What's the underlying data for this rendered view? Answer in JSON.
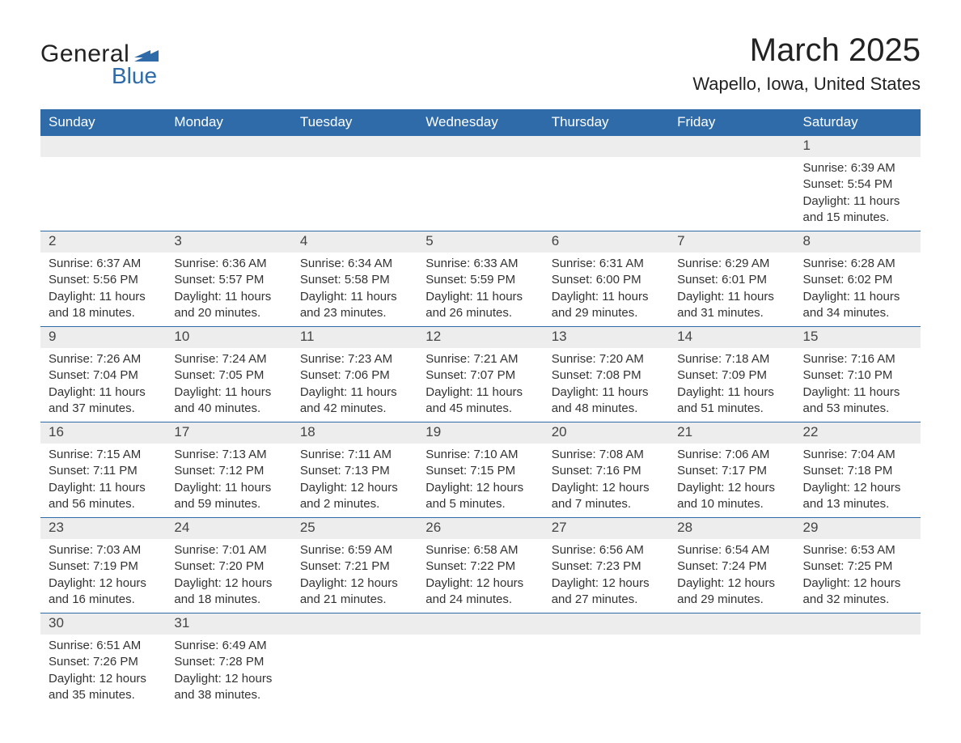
{
  "logo": {
    "text_general": "General",
    "text_blue": "Blue",
    "swoosh_color": "#2f6ba8",
    "text_color_general": "#222222",
    "text_color_blue": "#2f6ba8"
  },
  "title": {
    "month": "March 2025",
    "location": "Wapello, Iowa, United States",
    "month_fontsize": 40,
    "location_fontsize": 22,
    "color": "#222222"
  },
  "calendar": {
    "type": "table",
    "header_bg": "#2f6ba8",
    "header_text_color": "#ffffff",
    "row_border_color": "#2f6ba8",
    "daynum_bg": "#ededed",
    "daynum_color": "#444444",
    "body_text_color": "#333333",
    "header_fontsize": 17,
    "daynum_fontsize": 17,
    "body_fontsize": 15,
    "columns": [
      "Sunday",
      "Monday",
      "Tuesday",
      "Wednesday",
      "Thursday",
      "Friday",
      "Saturday"
    ],
    "weeks": [
      [
        {
          "day": "",
          "sunrise": "",
          "sunset": "",
          "daylight": ""
        },
        {
          "day": "",
          "sunrise": "",
          "sunset": "",
          "daylight": ""
        },
        {
          "day": "",
          "sunrise": "",
          "sunset": "",
          "daylight": ""
        },
        {
          "day": "",
          "sunrise": "",
          "sunset": "",
          "daylight": ""
        },
        {
          "day": "",
          "sunrise": "",
          "sunset": "",
          "daylight": ""
        },
        {
          "day": "",
          "sunrise": "",
          "sunset": "",
          "daylight": ""
        },
        {
          "day": "1",
          "sunrise": "Sunrise: 6:39 AM",
          "sunset": "Sunset: 5:54 PM",
          "daylight": "Daylight: 11 hours and 15 minutes."
        }
      ],
      [
        {
          "day": "2",
          "sunrise": "Sunrise: 6:37 AM",
          "sunset": "Sunset: 5:56 PM",
          "daylight": "Daylight: 11 hours and 18 minutes."
        },
        {
          "day": "3",
          "sunrise": "Sunrise: 6:36 AM",
          "sunset": "Sunset: 5:57 PM",
          "daylight": "Daylight: 11 hours and 20 minutes."
        },
        {
          "day": "4",
          "sunrise": "Sunrise: 6:34 AM",
          "sunset": "Sunset: 5:58 PM",
          "daylight": "Daylight: 11 hours and 23 minutes."
        },
        {
          "day": "5",
          "sunrise": "Sunrise: 6:33 AM",
          "sunset": "Sunset: 5:59 PM",
          "daylight": "Daylight: 11 hours and 26 minutes."
        },
        {
          "day": "6",
          "sunrise": "Sunrise: 6:31 AM",
          "sunset": "Sunset: 6:00 PM",
          "daylight": "Daylight: 11 hours and 29 minutes."
        },
        {
          "day": "7",
          "sunrise": "Sunrise: 6:29 AM",
          "sunset": "Sunset: 6:01 PM",
          "daylight": "Daylight: 11 hours and 31 minutes."
        },
        {
          "day": "8",
          "sunrise": "Sunrise: 6:28 AM",
          "sunset": "Sunset: 6:02 PM",
          "daylight": "Daylight: 11 hours and 34 minutes."
        }
      ],
      [
        {
          "day": "9",
          "sunrise": "Sunrise: 7:26 AM",
          "sunset": "Sunset: 7:04 PM",
          "daylight": "Daylight: 11 hours and 37 minutes."
        },
        {
          "day": "10",
          "sunrise": "Sunrise: 7:24 AM",
          "sunset": "Sunset: 7:05 PM",
          "daylight": "Daylight: 11 hours and 40 minutes."
        },
        {
          "day": "11",
          "sunrise": "Sunrise: 7:23 AM",
          "sunset": "Sunset: 7:06 PM",
          "daylight": "Daylight: 11 hours and 42 minutes."
        },
        {
          "day": "12",
          "sunrise": "Sunrise: 7:21 AM",
          "sunset": "Sunset: 7:07 PM",
          "daylight": "Daylight: 11 hours and 45 minutes."
        },
        {
          "day": "13",
          "sunrise": "Sunrise: 7:20 AM",
          "sunset": "Sunset: 7:08 PM",
          "daylight": "Daylight: 11 hours and 48 minutes."
        },
        {
          "day": "14",
          "sunrise": "Sunrise: 7:18 AM",
          "sunset": "Sunset: 7:09 PM",
          "daylight": "Daylight: 11 hours and 51 minutes."
        },
        {
          "day": "15",
          "sunrise": "Sunrise: 7:16 AM",
          "sunset": "Sunset: 7:10 PM",
          "daylight": "Daylight: 11 hours and 53 minutes."
        }
      ],
      [
        {
          "day": "16",
          "sunrise": "Sunrise: 7:15 AM",
          "sunset": "Sunset: 7:11 PM",
          "daylight": "Daylight: 11 hours and 56 minutes."
        },
        {
          "day": "17",
          "sunrise": "Sunrise: 7:13 AM",
          "sunset": "Sunset: 7:12 PM",
          "daylight": "Daylight: 11 hours and 59 minutes."
        },
        {
          "day": "18",
          "sunrise": "Sunrise: 7:11 AM",
          "sunset": "Sunset: 7:13 PM",
          "daylight": "Daylight: 12 hours and 2 minutes."
        },
        {
          "day": "19",
          "sunrise": "Sunrise: 7:10 AM",
          "sunset": "Sunset: 7:15 PM",
          "daylight": "Daylight: 12 hours and 5 minutes."
        },
        {
          "day": "20",
          "sunrise": "Sunrise: 7:08 AM",
          "sunset": "Sunset: 7:16 PM",
          "daylight": "Daylight: 12 hours and 7 minutes."
        },
        {
          "day": "21",
          "sunrise": "Sunrise: 7:06 AM",
          "sunset": "Sunset: 7:17 PM",
          "daylight": "Daylight: 12 hours and 10 minutes."
        },
        {
          "day": "22",
          "sunrise": "Sunrise: 7:04 AM",
          "sunset": "Sunset: 7:18 PM",
          "daylight": "Daylight: 12 hours and 13 minutes."
        }
      ],
      [
        {
          "day": "23",
          "sunrise": "Sunrise: 7:03 AM",
          "sunset": "Sunset: 7:19 PM",
          "daylight": "Daylight: 12 hours and 16 minutes."
        },
        {
          "day": "24",
          "sunrise": "Sunrise: 7:01 AM",
          "sunset": "Sunset: 7:20 PM",
          "daylight": "Daylight: 12 hours and 18 minutes."
        },
        {
          "day": "25",
          "sunrise": "Sunrise: 6:59 AM",
          "sunset": "Sunset: 7:21 PM",
          "daylight": "Daylight: 12 hours and 21 minutes."
        },
        {
          "day": "26",
          "sunrise": "Sunrise: 6:58 AM",
          "sunset": "Sunset: 7:22 PM",
          "daylight": "Daylight: 12 hours and 24 minutes."
        },
        {
          "day": "27",
          "sunrise": "Sunrise: 6:56 AM",
          "sunset": "Sunset: 7:23 PM",
          "daylight": "Daylight: 12 hours and 27 minutes."
        },
        {
          "day": "28",
          "sunrise": "Sunrise: 6:54 AM",
          "sunset": "Sunset: 7:24 PM",
          "daylight": "Daylight: 12 hours and 29 minutes."
        },
        {
          "day": "29",
          "sunrise": "Sunrise: 6:53 AM",
          "sunset": "Sunset: 7:25 PM",
          "daylight": "Daylight: 12 hours and 32 minutes."
        }
      ],
      [
        {
          "day": "30",
          "sunrise": "Sunrise: 6:51 AM",
          "sunset": "Sunset: 7:26 PM",
          "daylight": "Daylight: 12 hours and 35 minutes."
        },
        {
          "day": "31",
          "sunrise": "Sunrise: 6:49 AM",
          "sunset": "Sunset: 7:28 PM",
          "daylight": "Daylight: 12 hours and 38 minutes."
        },
        {
          "day": "",
          "sunrise": "",
          "sunset": "",
          "daylight": ""
        },
        {
          "day": "",
          "sunrise": "",
          "sunset": "",
          "daylight": ""
        },
        {
          "day": "",
          "sunrise": "",
          "sunset": "",
          "daylight": ""
        },
        {
          "day": "",
          "sunrise": "",
          "sunset": "",
          "daylight": ""
        },
        {
          "day": "",
          "sunrise": "",
          "sunset": "",
          "daylight": ""
        }
      ]
    ]
  }
}
